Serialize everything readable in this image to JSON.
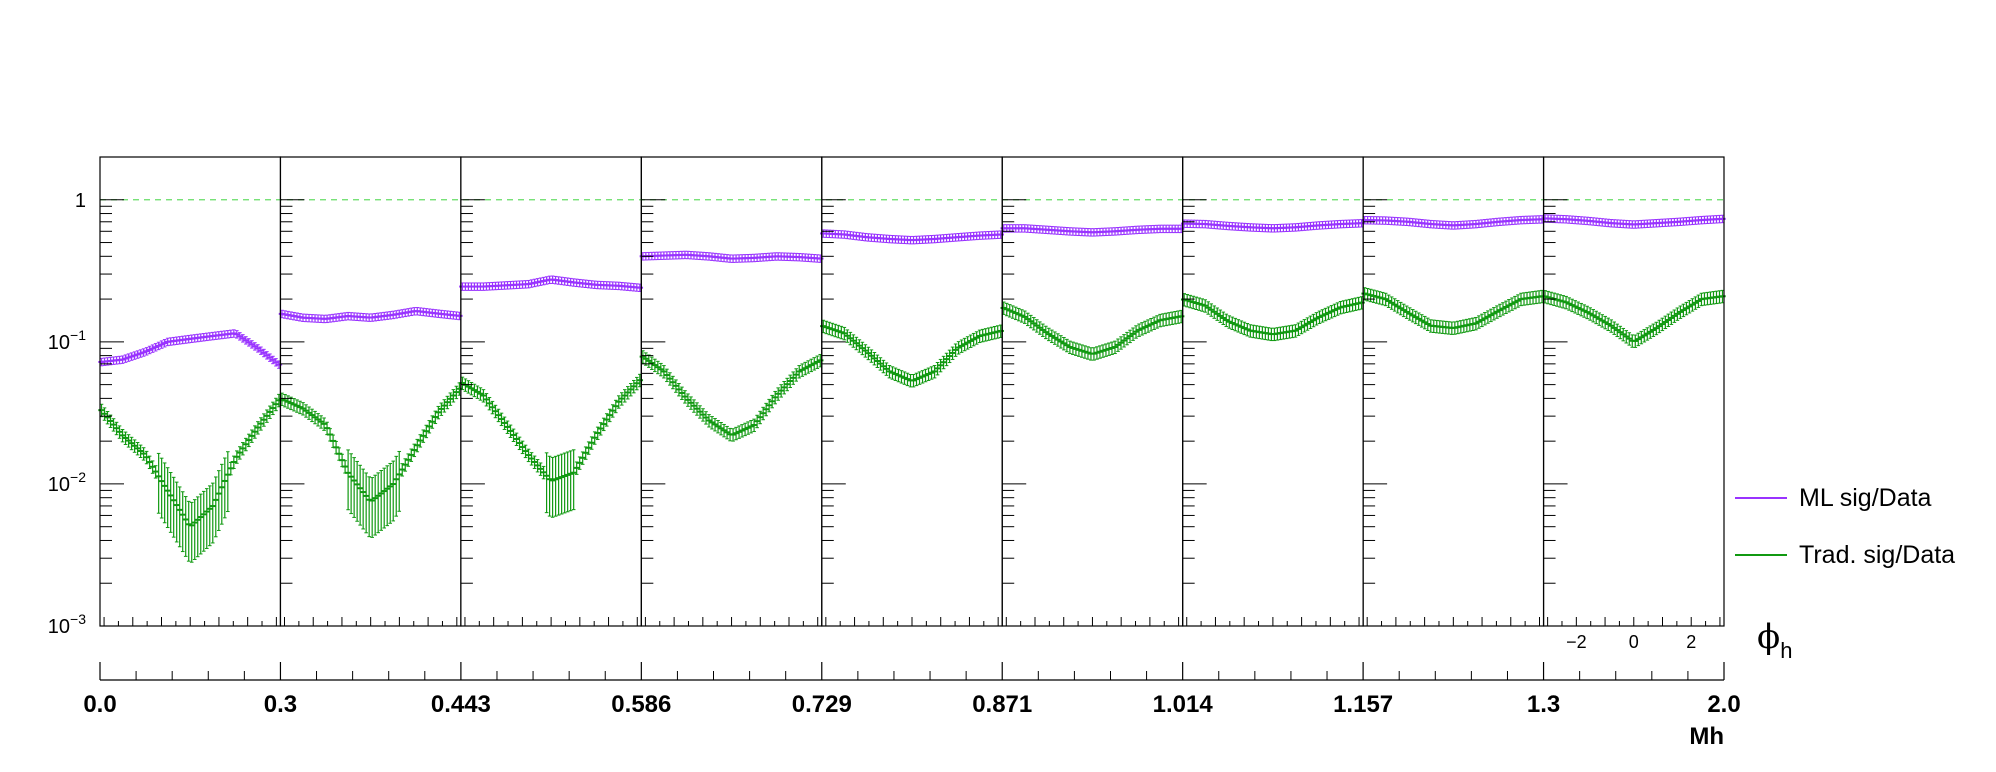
{
  "chart_data": {
    "type": "line",
    "title": "",
    "y_scale": "log",
    "ylim": [
      0.001,
      2
    ],
    "y_ticks": [
      {
        "value": 1,
        "label": "1"
      },
      {
        "value": 0.1,
        "label": "10^-1"
      },
      {
        "value": 0.01,
        "label": "10^-2"
      },
      {
        "value": 0.001,
        "label": "10^-3"
      }
    ],
    "reference_line": {
      "value": 1,
      "style": "dashed",
      "color": "#66dd66"
    },
    "x_inner": {
      "label": "ϕ_h",
      "label_main": "ϕ",
      "label_sub": "h",
      "range": [
        -3.1416,
        3.1416
      ],
      "ticks": [
        {
          "value": -2,
          "label": "−2"
        },
        {
          "value": 0,
          "label": "0"
        },
        {
          "value": 2,
          "label": "2"
        }
      ]
    },
    "x_outer": {
      "label": "Mh",
      "bin_edges": [
        "0.0",
        "0.3",
        "0.443",
        "0.586",
        "0.729",
        "0.871",
        "1.014",
        "1.157",
        "1.3",
        "2.0"
      ]
    },
    "legend_position": "right",
    "series": [
      {
        "name": "ML sig/Data",
        "color": "#9933ff",
        "error_bars": true,
        "panels": [
          {
            "bin": "0.0-0.3",
            "phi_h": [
              -3.14,
              -2.36,
              -1.57,
              -0.79,
              0.0,
              0.79,
              1.57,
              2.36,
              3.14
            ],
            "ratio": [
              0.072,
              0.075,
              0.085,
              0.1,
              0.105,
              0.11,
              0.115,
              0.09,
              0.068
            ]
          },
          {
            "bin": "0.3-0.443",
            "phi_h": [
              -3.14,
              -2.36,
              -1.57,
              -0.79,
              0.0,
              0.79,
              1.57,
              2.36,
              3.14
            ],
            "ratio": [
              0.158,
              0.148,
              0.145,
              0.152,
              0.148,
              0.155,
              0.165,
              0.158,
              0.152
            ]
          },
          {
            "bin": "0.443-0.586",
            "phi_h": [
              -3.14,
              -2.36,
              -1.57,
              -0.79,
              0.0,
              0.79,
              1.57,
              2.36,
              3.14
            ],
            "ratio": [
              0.245,
              0.245,
              0.25,
              0.255,
              0.275,
              0.262,
              0.252,
              0.248,
              0.24
            ]
          },
          {
            "bin": "0.586-0.729",
            "phi_h": [
              -3.14,
              -2.36,
              -1.57,
              -0.79,
              0.0,
              0.79,
              1.57,
              2.36,
              3.14
            ],
            "ratio": [
              0.4,
              0.405,
              0.41,
              0.4,
              0.385,
              0.39,
              0.4,
              0.395,
              0.385
            ]
          },
          {
            "bin": "0.729-0.871",
            "phi_h": [
              -3.14,
              -2.36,
              -1.57,
              -0.79,
              0.0,
              0.79,
              1.57,
              2.36,
              3.14
            ],
            "ratio": [
              0.58,
              0.57,
              0.545,
              0.53,
              0.52,
              0.53,
              0.545,
              0.56,
              0.57
            ]
          },
          {
            "bin": "0.871-1.014",
            "phi_h": [
              -3.14,
              -2.36,
              -1.57,
              -0.79,
              0.0,
              0.79,
              1.57,
              2.36,
              3.14
            ],
            "ratio": [
              0.63,
              0.63,
              0.615,
              0.6,
              0.59,
              0.6,
              0.615,
              0.625,
              0.625
            ]
          },
          {
            "bin": "1.014-1.157",
            "phi_h": [
              -3.14,
              -2.36,
              -1.57,
              -0.79,
              0.0,
              0.79,
              1.57,
              2.36,
              3.14
            ],
            "ratio": [
              0.68,
              0.675,
              0.655,
              0.64,
              0.63,
              0.64,
              0.66,
              0.675,
              0.685
            ]
          },
          {
            "bin": "1.157-1.3",
            "phi_h": [
              -3.14,
              -2.36,
              -1.57,
              -0.79,
              0.0,
              0.79,
              1.57,
              2.36,
              3.14
            ],
            "ratio": [
              0.72,
              0.715,
              0.7,
              0.675,
              0.66,
              0.675,
              0.7,
              0.72,
              0.73
            ]
          },
          {
            "bin": "1.3-2.0",
            "phi_h": [
              -3.14,
              -2.36,
              -1.57,
              -0.79,
              0.0,
              0.79,
              1.57,
              2.36,
              3.14
            ],
            "ratio": [
              0.74,
              0.73,
              0.71,
              0.685,
              0.67,
              0.685,
              0.7,
              0.72,
              0.735
            ]
          }
        ]
      },
      {
        "name": "Trad. sig/Data",
        "color": "#119911",
        "error_bars": true,
        "panels": [
          {
            "bin": "0.0-0.3",
            "phi_h": [
              -3.14,
              -2.36,
              -1.57,
              -0.79,
              0.0,
              0.79,
              1.57,
              2.36,
              3.14
            ],
            "ratio": [
              0.034,
              0.022,
              0.016,
              0.009,
              0.005,
              0.007,
              0.015,
              0.025,
              0.04
            ]
          },
          {
            "bin": "0.3-0.443",
            "phi_h": [
              -3.14,
              -2.36,
              -1.57,
              -0.79,
              0.0,
              0.79,
              1.57,
              2.36,
              3.14
            ],
            "ratio": [
              0.04,
              0.034,
              0.026,
              0.012,
              0.0075,
              0.01,
              0.018,
              0.032,
              0.048
            ]
          },
          {
            "bin": "0.443-0.586",
            "phi_h": [
              -3.14,
              -2.36,
              -1.57,
              -0.79,
              0.0,
              0.79,
              1.57,
              2.36,
              3.14
            ],
            "ratio": [
              0.052,
              0.042,
              0.026,
              0.016,
              0.0105,
              0.012,
              0.022,
              0.038,
              0.055
            ]
          },
          {
            "bin": "0.586-0.729",
            "phi_h": [
              -3.14,
              -2.36,
              -1.57,
              -0.79,
              0.0,
              0.79,
              1.57,
              2.36,
              3.14
            ],
            "ratio": [
              0.08,
              0.062,
              0.04,
              0.028,
              0.022,
              0.026,
              0.042,
              0.062,
              0.075
            ]
          },
          {
            "bin": "0.729-0.871",
            "phi_h": [
              -3.14,
              -2.36,
              -1.57,
              -0.79,
              0.0,
              0.79,
              1.57,
              2.36,
              3.14
            ],
            "ratio": [
              0.13,
              0.115,
              0.085,
              0.062,
              0.053,
              0.062,
              0.09,
              0.11,
              0.12
            ]
          },
          {
            "bin": "0.871-1.014",
            "phi_h": [
              -3.14,
              -2.36,
              -1.57,
              -0.79,
              0.0,
              0.79,
              1.57,
              2.36,
              3.14
            ],
            "ratio": [
              0.175,
              0.15,
              0.115,
              0.092,
              0.082,
              0.092,
              0.12,
              0.142,
              0.152
            ]
          },
          {
            "bin": "1.014-1.157",
            "phi_h": [
              -3.14,
              -2.36,
              -1.57,
              -0.79,
              0.0,
              0.79,
              1.57,
              2.36,
              3.14
            ],
            "ratio": [
              0.2,
              0.18,
              0.14,
              0.12,
              0.113,
              0.12,
              0.148,
              0.175,
              0.19
            ]
          },
          {
            "bin": "1.157-1.3",
            "phi_h": [
              -3.14,
              -2.36,
              -1.57,
              -0.79,
              0.0,
              0.79,
              1.57,
              2.36,
              3.14
            ],
            "ratio": [
              0.22,
              0.2,
              0.16,
              0.13,
              0.125,
              0.135,
              0.165,
              0.2,
              0.21
            ]
          },
          {
            "bin": "1.3-2.0",
            "phi_h": [
              -3.14,
              -2.36,
              -1.57,
              -0.79,
              0.0,
              0.79,
              1.57,
              2.36,
              3.14
            ],
            "ratio": [
              0.21,
              0.19,
              0.16,
              0.13,
              0.1,
              0.125,
              0.16,
              0.2,
              0.21
            ]
          }
        ]
      }
    ]
  }
}
